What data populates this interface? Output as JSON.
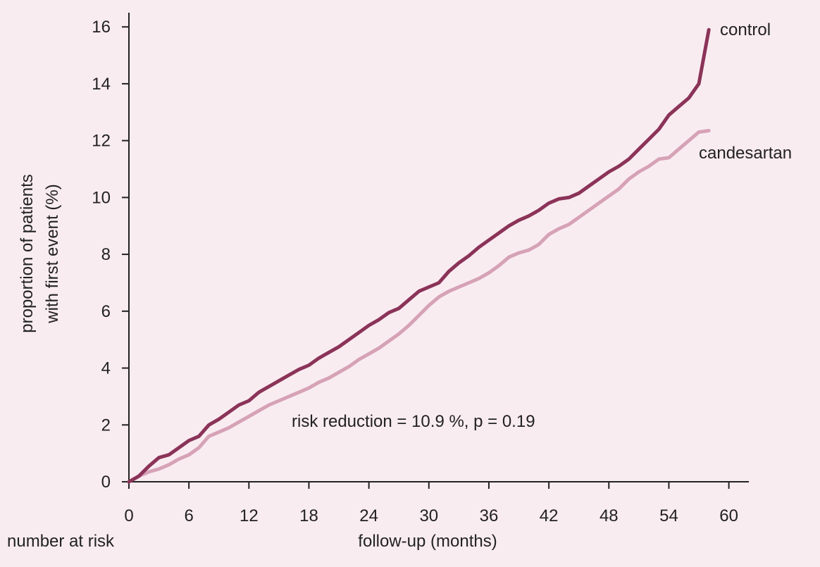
{
  "chart_data": {
    "type": "line",
    "title": "",
    "xlabel": "follow-up (months)",
    "ylabel_lines": [
      "proportion of patients",
      "with first event (%)"
    ],
    "footer_left": "number at risk",
    "annotation": "risk reduction = 10.9 %, p = 0.19",
    "xlim": [
      0,
      62
    ],
    "ylim": [
      0,
      16.5
    ],
    "xticks": [
      0,
      6,
      12,
      18,
      24,
      30,
      36,
      42,
      48,
      54,
      60
    ],
    "yticks": [
      0,
      2,
      4,
      6,
      8,
      10,
      12,
      14,
      16
    ],
    "grid": false,
    "legend": "inline labels at line ends",
    "series": [
      {
        "name": "control",
        "color": "#8b3358",
        "x": [
          0,
          1,
          2,
          3,
          4,
          5,
          6,
          7,
          8,
          9,
          10,
          11,
          12,
          13,
          14,
          15,
          16,
          17,
          18,
          19,
          20,
          21,
          22,
          23,
          24,
          25,
          26,
          27,
          28,
          29,
          30,
          31,
          32,
          33,
          34,
          35,
          36,
          37,
          38,
          39,
          40,
          41,
          42,
          43,
          44,
          45,
          46,
          47,
          48,
          49,
          50,
          51,
          52,
          53,
          54,
          55,
          56,
          57,
          58
        ],
        "y": [
          0.0,
          0.2,
          0.55,
          0.85,
          0.95,
          1.2,
          1.45,
          1.6,
          2.0,
          2.2,
          2.45,
          2.7,
          2.85,
          3.15,
          3.35,
          3.55,
          3.75,
          3.95,
          4.1,
          4.35,
          4.55,
          4.75,
          5.0,
          5.25,
          5.5,
          5.7,
          5.95,
          6.1,
          6.4,
          6.7,
          6.85,
          7.0,
          7.4,
          7.7,
          7.95,
          8.25,
          8.5,
          8.75,
          9.0,
          9.2,
          9.35,
          9.55,
          9.8,
          9.95,
          10.0,
          10.15,
          10.4,
          10.65,
          10.9,
          11.1,
          11.35,
          11.7,
          12.05,
          12.4,
          12.9,
          13.2,
          13.5,
          14.0,
          15.9
        ]
      },
      {
        "name": "candesartan",
        "color": "#d6a2b6",
        "x": [
          0,
          1,
          2,
          3,
          4,
          5,
          6,
          7,
          8,
          9,
          10,
          11,
          12,
          13,
          14,
          15,
          16,
          17,
          18,
          19,
          20,
          21,
          22,
          23,
          24,
          25,
          26,
          27,
          28,
          29,
          30,
          31,
          32,
          33,
          34,
          35,
          36,
          37,
          38,
          39,
          40,
          41,
          42,
          43,
          44,
          45,
          46,
          47,
          48,
          49,
          50,
          51,
          52,
          53,
          54,
          55,
          56,
          57,
          58
        ],
        "y": [
          0.0,
          0.2,
          0.35,
          0.45,
          0.6,
          0.8,
          0.95,
          1.2,
          1.6,
          1.75,
          1.9,
          2.1,
          2.3,
          2.5,
          2.7,
          2.85,
          3.0,
          3.15,
          3.3,
          3.5,
          3.65,
          3.85,
          4.05,
          4.3,
          4.5,
          4.7,
          4.95,
          5.2,
          5.5,
          5.85,
          6.2,
          6.5,
          6.7,
          6.85,
          7.0,
          7.15,
          7.35,
          7.6,
          7.9,
          8.05,
          8.15,
          8.35,
          8.7,
          8.9,
          9.05,
          9.3,
          9.55,
          9.8,
          10.05,
          10.3,
          10.65,
          10.9,
          11.1,
          11.35,
          11.4,
          11.7,
          12.0,
          12.3,
          12.35
        ]
      }
    ]
  }
}
